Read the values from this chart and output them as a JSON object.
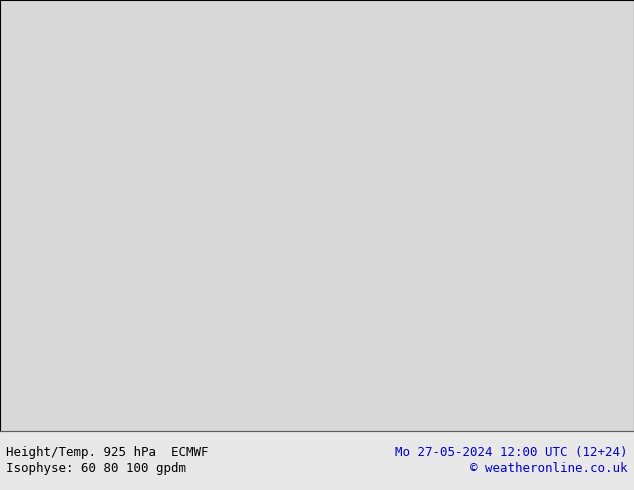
{
  "title": "Height/Temp. 925 hPa  ECMWF",
  "subtitle_left": "Height/Temp. 925 hPa  ECMWF",
  "subtitle_right": "Mo 27-05-2024 12:00 UTC (12+24)",
  "bottom_left": "Isophyse: 60 80 100 gpdm",
  "bottom_right": "© weatheronline.co.uk",
  "background_color": "#f0f0f0",
  "land_color": "#c8f0c8",
  "ocean_color": "#d8d8d8",
  "text_color": "#000000",
  "right_text_color": "#0000cc",
  "figsize": [
    6.34,
    4.9
  ],
  "dpi": 100,
  "map_extent": [
    -170,
    -50,
    15,
    80
  ],
  "contour_colors": [
    "#ff0000",
    "#ff8800",
    "#ffff00",
    "#00cc00",
    "#0000ff",
    "#cc00cc",
    "#00cccc",
    "#000000"
  ],
  "footer_fontsize": 9,
  "footer_bg": "#e8e8e8"
}
